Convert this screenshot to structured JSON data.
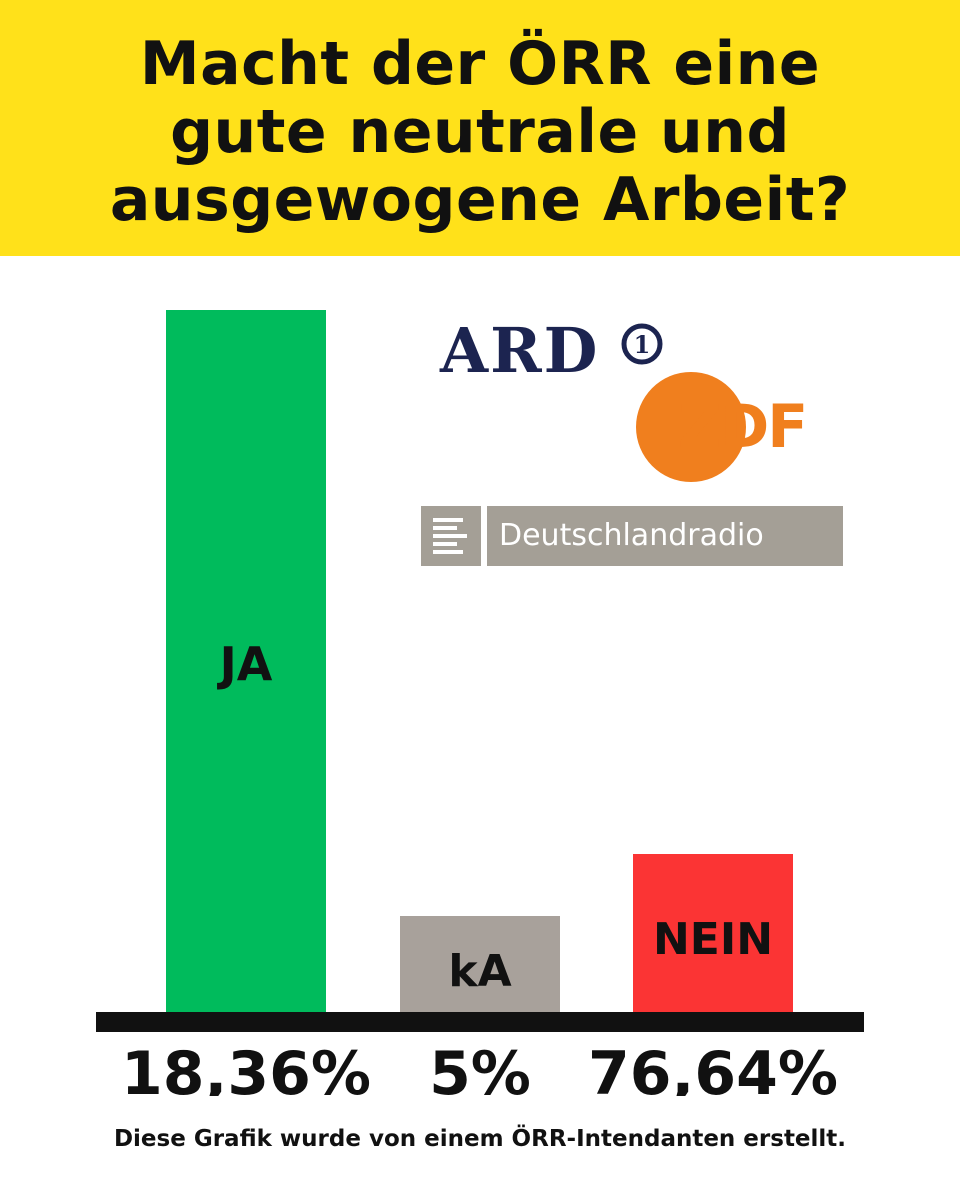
{
  "title": {
    "line1": "Macht der ÖRR eine",
    "line2": "gute neutrale und",
    "line3": "ausgewogene Arbeit?"
  },
  "logos": {
    "ard": "ARD",
    "ard_badge": "1",
    "zdf": "ZDF",
    "deutschlandradio": "Deutschlandradio"
  },
  "footnote": "Diese Grafik wurde von einem ÖRR-Intendanten erstellt.",
  "colors": {
    "header_bg": "#ffe11a",
    "ja": "#00bb5c",
    "ka": "#a8a19b",
    "nein": "#fb3434",
    "axis": "#111111",
    "ard_blue": "#1c2450",
    "zdf_orange": "#f07f1e"
  },
  "chart_data": {
    "type": "bar",
    "categories": [
      "JA",
      "kA",
      "NEIN"
    ],
    "values": [
      18.36,
      5,
      76.64
    ],
    "value_labels": [
      "18,36%",
      "5%",
      "76,64%"
    ],
    "visual_bar_height_order": [
      "JA",
      "NEIN",
      "kA"
    ],
    "title": "Macht der ÖRR eine gute neutrale und ausgewogene Arbeit?",
    "xlabel": "",
    "ylabel": "",
    "grid": false,
    "legend": "none"
  }
}
